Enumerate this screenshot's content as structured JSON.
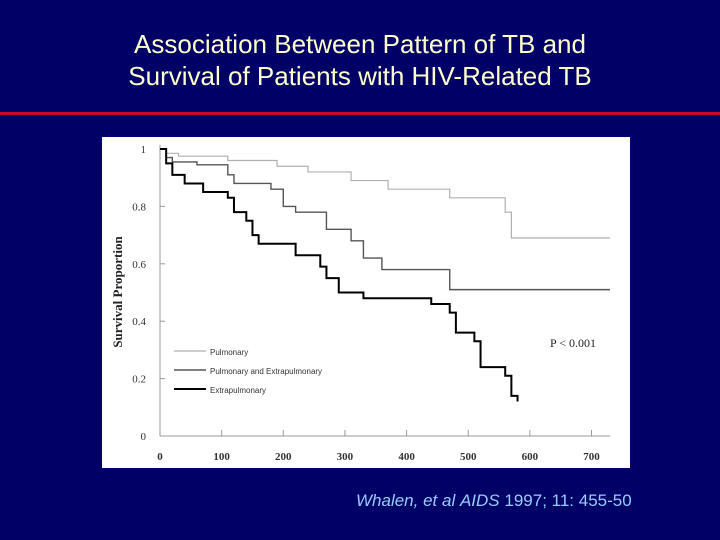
{
  "slide": {
    "title_line1": "Association Between Pattern of TB and",
    "title_line2": "Survival of Patients with HIV-Related TB",
    "citation_authors": "Whalen, et al",
    "citation_journal": "AIDS",
    "citation_ref": "1997; 11: 455-50",
    "colors": {
      "background": "#000066",
      "title": "#ffffcc",
      "rule": "#cc0033",
      "citation": "#99ccff"
    }
  },
  "chart_data": {
    "type": "line",
    "xlabel": "",
    "ylabel": "Survival Proportion",
    "xlim": [
      0,
      730
    ],
    "ylim": [
      0,
      1
    ],
    "x_ticks": [
      0,
      100,
      200,
      300,
      400,
      500,
      600,
      700
    ],
    "x_tick_labels": [
      "0",
      "100",
      "200",
      "300",
      "400",
      "500",
      "600",
      "700"
    ],
    "y_ticks": [
      0,
      0.2,
      0.4,
      0.6,
      0.8,
      1
    ],
    "y_tick_labels": [
      "0",
      "0.2",
      "0.4",
      "0.6",
      "0.8",
      "1"
    ],
    "annotation": "P < 0.001",
    "legend_position": "center-left",
    "series": [
      {
        "name": "Pulmonary",
        "color": "#b0b0b0",
        "width": 1.2,
        "steps": [
          [
            0,
            1.0
          ],
          [
            10,
            0.985
          ],
          [
            30,
            0.975
          ],
          [
            110,
            0.96
          ],
          [
            190,
            0.94
          ],
          [
            240,
            0.92
          ],
          [
            310,
            0.89
          ],
          [
            370,
            0.86
          ],
          [
            470,
            0.83
          ],
          [
            560,
            0.78
          ],
          [
            570,
            0.69
          ],
          [
            730,
            0.69
          ]
        ]
      },
      {
        "name": "Pulmonary and Extrapulmonary",
        "color": "#555555",
        "width": 1.4,
        "steps": [
          [
            0,
            1.0
          ],
          [
            10,
            0.97
          ],
          [
            20,
            0.955
          ],
          [
            60,
            0.945
          ],
          [
            110,
            0.91
          ],
          [
            120,
            0.88
          ],
          [
            180,
            0.86
          ],
          [
            200,
            0.8
          ],
          [
            220,
            0.78
          ],
          [
            270,
            0.72
          ],
          [
            310,
            0.68
          ],
          [
            330,
            0.62
          ],
          [
            360,
            0.58
          ],
          [
            450,
            0.58
          ],
          [
            470,
            0.51
          ],
          [
            730,
            0.51
          ]
        ]
      },
      {
        "name": "Extrapulmonary",
        "color": "#000000",
        "width": 2,
        "steps": [
          [
            0,
            1.0
          ],
          [
            10,
            0.95
          ],
          [
            20,
            0.91
          ],
          [
            40,
            0.88
          ],
          [
            70,
            0.85
          ],
          [
            110,
            0.83
          ],
          [
            120,
            0.78
          ],
          [
            140,
            0.75
          ],
          [
            150,
            0.7
          ],
          [
            160,
            0.67
          ],
          [
            220,
            0.63
          ],
          [
            260,
            0.59
          ],
          [
            270,
            0.55
          ],
          [
            290,
            0.5
          ],
          [
            330,
            0.48
          ],
          [
            440,
            0.46
          ],
          [
            470,
            0.43
          ],
          [
            480,
            0.36
          ],
          [
            510,
            0.33
          ],
          [
            520,
            0.24
          ],
          [
            560,
            0.21
          ],
          [
            570,
            0.14
          ],
          [
            580,
            0.12
          ]
        ]
      }
    ]
  }
}
